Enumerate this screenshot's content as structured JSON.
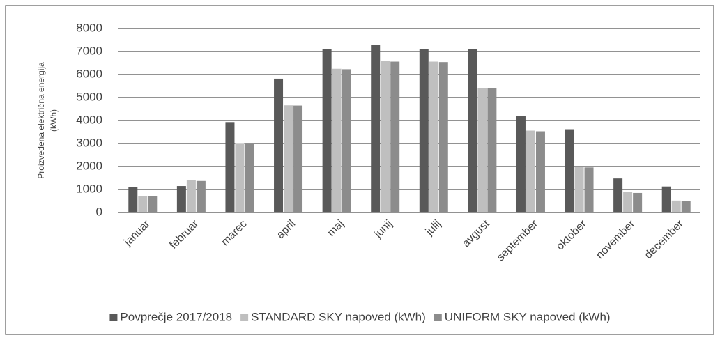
{
  "chart_data": {
    "type": "bar",
    "ylabel": [
      "Proizvedena električna energija",
      "(kWh)"
    ],
    "categories": [
      "januar",
      "februar",
      "marec",
      "april",
      "maj",
      "junij",
      "julij",
      "avgust",
      "september",
      "oktober",
      "november",
      "december"
    ],
    "series": [
      {
        "name": "Povprečje 2017/2018",
        "color": "#595959",
        "values": [
          1100,
          1150,
          3930,
          5820,
          7120,
          7280,
          7100,
          7100,
          4210,
          3620,
          1480,
          1130
        ]
      },
      {
        "name": "STANDARD SKY napoved (kWh)",
        "color": "#bfbfbf",
        "values": [
          720,
          1400,
          3020,
          4660,
          6250,
          6580,
          6560,
          5420,
          3560,
          2000,
          880,
          520
        ]
      },
      {
        "name": "UNIFORM SKY napoved (kWh)",
        "color": "#8c8c8c",
        "values": [
          700,
          1370,
          3000,
          4650,
          6230,
          6560,
          6540,
          5400,
          3530,
          1960,
          850,
          500
        ]
      }
    ],
    "ylim": [
      0,
      8000
    ],
    "yticks": [
      0,
      1000,
      2000,
      3000,
      4000,
      5000,
      6000,
      7000,
      8000
    ],
    "grid": true,
    "legend": "bottom"
  }
}
